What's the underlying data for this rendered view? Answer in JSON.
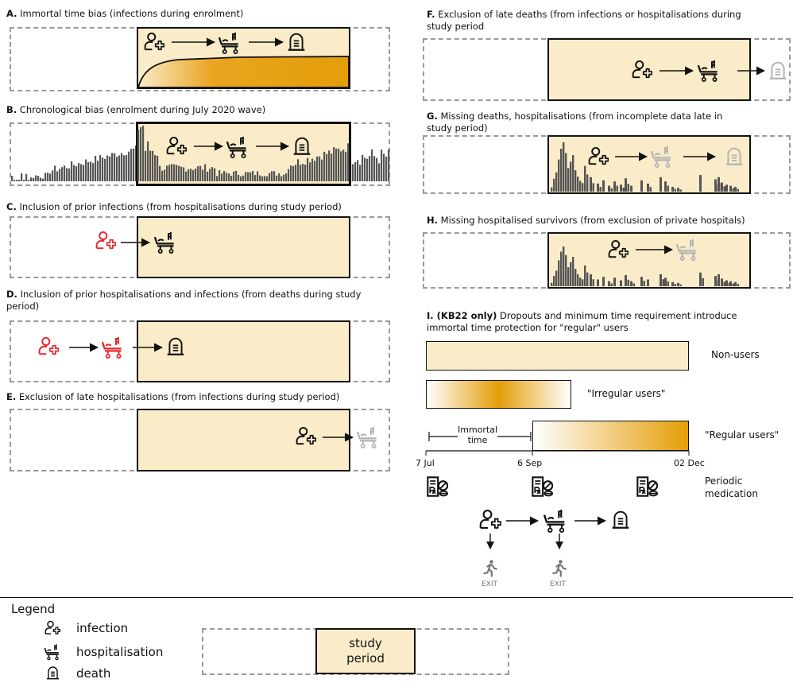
{
  "panels": {
    "A": {
      "letter": "A.",
      "text": " Immortal time bias (infections during enrolment)"
    },
    "B": {
      "letter": "B.",
      "text": " Chronological bias (enrolment during July 2020 wave)"
    },
    "C": {
      "letter": "C.",
      "text": " Inclusion of prior infections (from hospitalisations during study period)"
    },
    "D": {
      "letter": "D.",
      "text": " Inclusion of prior hospitalisations and infections (from deaths during study period)"
    },
    "E": {
      "letter": "E.",
      "text": " Exclusion of late hospitalisations (from infections during study period)"
    },
    "F": {
      "letter": "F.",
      "text": " Exclusion of late deaths (from infections or hospitalisations during study period"
    },
    "G": {
      "letter": "G.",
      "text": " Missing deaths, hospitalisations (from incomplete data late in study period)"
    },
    "H": {
      "letter": "H.",
      "text": " Missing hospitalised survivors (from exclusion of private hospitals)"
    },
    "I": {
      "letter": "I. (KB22 only)",
      "text": " Dropouts and minimum time requirement introduce immortal time protection for \"regular\" users"
    }
  },
  "groups": {
    "non_users": "Non-users",
    "irregular": "\"Irregular users\"",
    "regular": "\"Regular users\""
  },
  "immortal_time": "Immortal\ntime",
  "dates": {
    "start": "7 Jul",
    "mid": "6 Sep",
    "end": "02 Dec"
  },
  "periodic_medication": "Periodic\nmedication",
  "exit_label": "EXIT",
  "legend": {
    "title": "Legend",
    "infection": "infection",
    "hospitalisation": "hospitalisation",
    "death": "death",
    "study_period": "study\nperiod"
  },
  "icons": [
    "person-plus-icon",
    "hospital-bed-icon",
    "tombstone-icon",
    "prescription-pill-icon",
    "running-exit-icon"
  ],
  "colors": {
    "study_period_fill": "#fbecc9",
    "gradient_dark": "#e49e08",
    "prior_event": "#e8262a",
    "missing_event": "#b3b3b3",
    "bars": "#555555"
  }
}
